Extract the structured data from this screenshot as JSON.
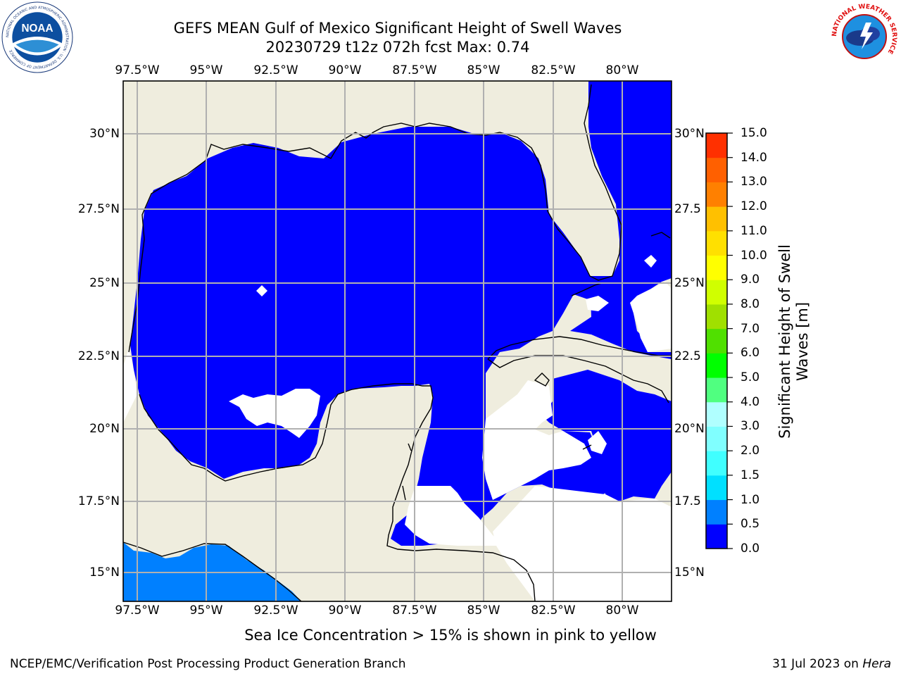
{
  "header": {
    "title_line1": "GEFS MEAN Gulf of Mexico Significant Height of Swell Waves",
    "title_line2": "20230729 t12z 072h fcst   Max: 0.74"
  },
  "logos": {
    "noaa": {
      "text": "NOAA",
      "ring_text": "NATIONAL OCEANIC AND ATMOSPHERIC ADMINISTRATION · U.S. DEPARTMENT OF COMMERCE"
    },
    "nws": {
      "ring_text": "NATIONAL WEATHER SERVICE"
    }
  },
  "map": {
    "longitude_labels": [
      "97.5°W",
      "95°W",
      "92.5°W",
      "90°W",
      "87.5°W",
      "85°W",
      "82.5°W",
      "80°W"
    ],
    "latitude_labels": [
      "30°N",
      "27.5°N",
      "25°N",
      "22.5°N",
      "20°N",
      "17.5°N",
      "15°N"
    ],
    "latitude_labels_right": [
      "30°N",
      "27.5",
      "25°N",
      "22.5",
      "20°N",
      "17.5",
      "15°N"
    ],
    "colors": {
      "land": "#efedde",
      "sea_lowest": "#0000ff",
      "sea_second": "#0080ff",
      "missing": "#ffffff",
      "grid": "#b0b0b0",
      "coast": "#000000"
    }
  },
  "colorbar": {
    "label": "Significant Height of Swell Waves [m]",
    "tick_labels": [
      "0.0",
      "0.5",
      "1.0",
      "1.5",
      "2.0",
      "3.0",
      "4.0",
      "5.0",
      "6.0",
      "7.0",
      "8.0",
      "9.0",
      "10.0",
      "11.0",
      "12.0",
      "13.0",
      "14.0",
      "15.0"
    ],
    "bin_colors": [
      "#0000ff",
      "#0080ff",
      "#00e0ff",
      "#40ffff",
      "#80ffff",
      "#b0ffff",
      "#50ff80",
      "#00ff00",
      "#50e000",
      "#a0e000",
      "#d0ff00",
      "#ffff00",
      "#ffe000",
      "#ffc000",
      "#ff8000",
      "#ff6000",
      "#ff3000",
      "#ff0000"
    ]
  },
  "footnote": "Sea Ice Concentration > 15% is shown in pink to yellow",
  "credits": {
    "left": "NCEP/EMC/Verification Post Processing Product Generation Branch",
    "right_date": "31 Jul 2023 on",
    "right_host": "Hera"
  }
}
